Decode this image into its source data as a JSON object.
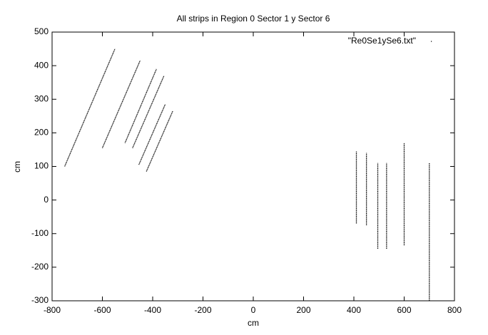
{
  "chart_data": {
    "type": "line",
    "title": "All strips in Region 0 Sector 1 y Sector 6",
    "x_label": "cm",
    "y_label": "cm",
    "xlim": [
      -800,
      800
    ],
    "xticks": [
      -800,
      -600,
      -400,
      -200,
      0,
      200,
      400,
      600,
      800
    ],
    "ylim": [
      -300,
      500
    ],
    "yticks": [
      -300,
      -200,
      -100,
      0,
      100,
      200,
      300,
      400,
      500
    ],
    "grid": false,
    "legend": "top-right",
    "series": [
      {
        "name": "\"Re0Se1ySe6.txt\"",
        "color": "#000000",
        "x": [
          -750,
          -550,
          null,
          -600,
          -450,
          null,
          -510,
          -385,
          null,
          -480,
          -355,
          null,
          -455,
          -350,
          null,
          -425,
          -320,
          null,
          410,
          410,
          null,
          450,
          450,
          null,
          495,
          495,
          null,
          530,
          530,
          null,
          600,
          600,
          null,
          700,
          700
        ],
        "y": [
          100,
          450,
          null,
          155,
          415,
          null,
          170,
          390,
          null,
          155,
          370,
          null,
          105,
          285,
          null,
          85,
          265,
          null,
          -70,
          145,
          null,
          -75,
          140,
          null,
          -145,
          110,
          null,
          -145,
          110,
          null,
          -135,
          170,
          null,
          -300,
          110
        ]
      }
    ]
  }
}
